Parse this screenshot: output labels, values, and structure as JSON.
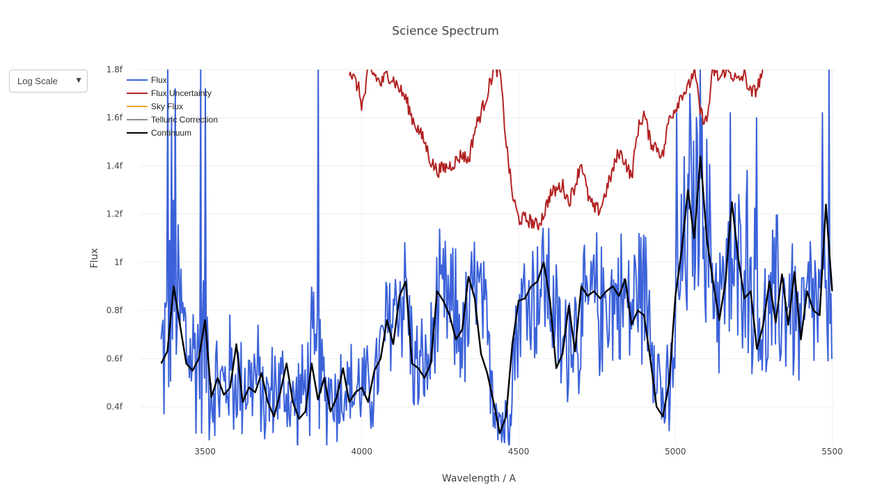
{
  "dropdown": {
    "selected": "Log Scale",
    "arrow_icon": "triangle-down-icon"
  },
  "chart_data": {
    "type": "line",
    "title": "Science Spectrum",
    "xlabel": "Wavelength / A",
    "ylabel": "Flux",
    "xlim": [
      3290,
      5510
    ],
    "ylim": [
      0.24,
      1.8
    ],
    "grid": true,
    "legend_position": "top-left",
    "x_ticks": [
      3500,
      4000,
      4500,
      5000,
      5500
    ],
    "x_tick_labels": [
      "3500",
      "4000",
      "4500",
      "5000",
      "5500"
    ],
    "y_ticks": [
      0.4,
      0.6,
      0.8,
      1.0,
      1.2,
      1.4,
      1.6,
      1.8
    ],
    "y_tick_labels": [
      "0.4f",
      "0.6f",
      "0.8f",
      "1f",
      "1.2f",
      "1.4f",
      "1.6f",
      "1.8f"
    ],
    "series": [
      {
        "name": "Flux",
        "color": "#3b62d9",
        "type": "noisy_line",
        "x": [
          3360,
          3380,
          3400,
          3420,
          3440,
          3460,
          3480,
          3500,
          3520,
          3540,
          3560,
          3580,
          3600,
          3620,
          3640,
          3660,
          3680,
          3700,
          3720,
          3740,
          3760,
          3780,
          3800,
          3820,
          3840,
          3860,
          3880,
          3900,
          3920,
          3940,
          3960,
          3980,
          4000,
          4020,
          4040,
          4060,
          4080,
          4100,
          4120,
          4140,
          4160,
          4180,
          4200,
          4220,
          4240,
          4260,
          4280,
          4300,
          4320,
          4340,
          4360,
          4380,
          4400,
          4420,
          4440,
          4460,
          4480,
          4500,
          4520,
          4540,
          4560,
          4580,
          4600,
          4620,
          4640,
          4660,
          4680,
          4700,
          4720,
          4740,
          4760,
          4780,
          4800,
          4820,
          4840,
          4860,
          4880,
          4900,
          4920,
          4940,
          4960,
          4980,
          5000,
          5020,
          5040,
          5060,
          5080,
          5100,
          5120,
          5140,
          5160,
          5180,
          5200,
          5220,
          5240,
          5260,
          5280,
          5300,
          5320,
          5340,
          5360,
          5380,
          5400,
          5420,
          5440,
          5460,
          5480,
          5500
        ],
        "center": [
          0.6,
          0.7,
          0.86,
          0.8,
          0.66,
          0.6,
          0.65,
          0.7,
          0.52,
          0.47,
          0.48,
          0.55,
          0.48,
          0.52,
          0.5,
          0.53,
          0.46,
          0.4,
          0.5,
          0.48,
          0.46,
          0.4,
          0.44,
          0.47,
          0.58,
          0.5,
          0.46,
          0.48,
          0.44,
          0.5,
          0.48,
          0.46,
          0.5,
          0.46,
          0.48,
          0.62,
          0.72,
          0.8,
          0.86,
          0.9,
          0.62,
          0.55,
          0.55,
          0.6,
          0.8,
          0.84,
          0.8,
          0.78,
          0.7,
          0.72,
          0.92,
          0.82,
          0.65,
          0.5,
          0.36,
          0.32,
          0.6,
          0.78,
          0.84,
          0.86,
          0.88,
          0.92,
          0.9,
          0.72,
          0.62,
          0.72,
          0.75,
          0.7,
          0.82,
          0.86,
          0.8,
          0.85,
          0.84,
          0.86,
          0.84,
          0.8,
          0.9,
          0.9,
          0.8,
          0.6,
          0.42,
          0.4,
          0.72,
          0.98,
          1.15,
          1.22,
          1.35,
          1.12,
          0.95,
          0.88,
          0.88,
          0.92,
          0.92,
          1.12,
          0.94,
          0.84,
          0.7,
          0.75,
          0.86,
          0.82,
          0.86,
          0.8,
          0.72,
          0.8,
          0.86,
          0.76,
          0.8,
          0.9
        ],
        "amplitude": [
          0.34,
          0.38,
          0.42,
          0.4,
          0.36,
          0.32,
          0.42,
          0.36,
          0.3,
          0.26,
          0.24,
          0.24,
          0.24,
          0.24,
          0.22,
          0.24,
          0.22,
          0.2,
          0.2,
          0.22,
          0.2,
          0.2,
          0.22,
          0.2,
          0.3,
          0.4,
          0.22,
          0.2,
          0.2,
          0.22,
          0.2,
          0.2,
          0.2,
          0.18,
          0.2,
          0.22,
          0.26,
          0.28,
          0.28,
          0.3,
          0.24,
          0.22,
          0.22,
          0.24,
          0.26,
          0.28,
          0.28,
          0.28,
          0.26,
          0.26,
          0.28,
          0.28,
          0.24,
          0.22,
          0.2,
          0.2,
          0.22,
          0.26,
          0.28,
          0.28,
          0.3,
          0.3,
          0.3,
          0.28,
          0.26,
          0.28,
          0.28,
          0.26,
          0.28,
          0.28,
          0.28,
          0.28,
          0.28,
          0.28,
          0.28,
          0.28,
          0.3,
          0.3,
          0.28,
          0.24,
          0.22,
          0.22,
          0.3,
          0.36,
          0.42,
          0.44,
          0.48,
          0.42,
          0.36,
          0.34,
          0.34,
          0.36,
          0.38,
          0.42,
          0.36,
          0.34,
          0.3,
          0.32,
          0.34,
          0.34,
          0.34,
          0.32,
          0.3,
          0.32,
          0.34,
          0.32,
          0.36,
          0.4
        ],
        "spikes": [
          [
            3380,
            1.8
          ],
          [
            3392,
            1.6
          ],
          [
            3405,
            1.72
          ],
          [
            3485,
            1.8
          ],
          [
            3500,
            1.72
          ],
          [
            3860,
            1.8
          ],
          [
            5005,
            1.62
          ],
          [
            5045,
            1.7
          ],
          [
            5085,
            1.6
          ],
          [
            5175,
            1.62
          ],
          [
            5260,
            1.6
          ],
          [
            5470,
            1.62
          ],
          [
            5490,
            1.8
          ]
        ]
      },
      {
        "name": "Flux Uncertainty",
        "color": "#b22222",
        "type": "line",
        "x": [
          3960,
          3990,
          4000,
          4010,
          4020,
          4040,
          4060,
          4080,
          4100,
          4120,
          4140,
          4160,
          4180,
          4200,
          4220,
          4240,
          4260,
          4280,
          4300,
          4320,
          4340,
          4360,
          4380,
          4400,
          4420,
          4440,
          4460,
          4480,
          4500,
          4520,
          4540,
          4560,
          4580,
          4600,
          4620,
          4640,
          4660,
          4680,
          4700,
          4720,
          4740,
          4760,
          4780,
          4800,
          4820,
          4840,
          4860,
          4880,
          4900,
          4920,
          4940,
          4960,
          4980,
          5000,
          5020,
          5040,
          5060,
          5080,
          5100,
          5120,
          5140,
          5160,
          5180,
          5200,
          5220,
          5240,
          5260,
          5280
        ],
        "y": [
          1.8,
          1.72,
          1.65,
          1.7,
          1.8,
          1.78,
          1.74,
          1.78,
          1.76,
          1.72,
          1.68,
          1.6,
          1.55,
          1.5,
          1.42,
          1.38,
          1.39,
          1.4,
          1.42,
          1.45,
          1.42,
          1.55,
          1.62,
          1.7,
          1.8,
          1.8,
          1.5,
          1.28,
          1.18,
          1.18,
          1.17,
          1.15,
          1.2,
          1.28,
          1.3,
          1.32,
          1.25,
          1.32,
          1.42,
          1.28,
          1.22,
          1.22,
          1.3,
          1.38,
          1.46,
          1.42,
          1.35,
          1.55,
          1.62,
          1.5,
          1.48,
          1.44,
          1.6,
          1.64,
          1.7,
          1.72,
          1.8,
          1.62,
          1.58,
          1.8,
          1.76,
          1.8,
          1.78,
          1.75,
          1.78,
          1.7,
          1.72,
          1.8
        ]
      },
      {
        "name": "Sky Flux",
        "color": "#f2a900",
        "type": "line",
        "x": [],
        "y": []
      },
      {
        "name": "Telluric Correction",
        "color": "#8c8c8c",
        "type": "line",
        "x": [],
        "y": []
      },
      {
        "name": "Continuum",
        "color": "#000000",
        "type": "line",
        "x": [
          3360,
          3380,
          3400,
          3420,
          3440,
          3460,
          3480,
          3500,
          3520,
          3540,
          3560,
          3580,
          3600,
          3620,
          3640,
          3660,
          3680,
          3700,
          3720,
          3740,
          3760,
          3780,
          3800,
          3820,
          3840,
          3860,
          3880,
          3900,
          3920,
          3940,
          3960,
          3980,
          4000,
          4020,
          4040,
          4060,
          4080,
          4100,
          4120,
          4140,
          4160,
          4180,
          4200,
          4220,
          4240,
          4260,
          4280,
          4300,
          4320,
          4340,
          4360,
          4380,
          4400,
          4420,
          4440,
          4460,
          4480,
          4500,
          4520,
          4540,
          4560,
          4580,
          4600,
          4620,
          4640,
          4660,
          4680,
          4700,
          4720,
          4740,
          4760,
          4780,
          4800,
          4820,
          4840,
          4860,
          4880,
          4900,
          4920,
          4940,
          4960,
          4980,
          5000,
          5020,
          5040,
          5060,
          5080,
          5100,
          5120,
          5140,
          5160,
          5180,
          5200,
          5220,
          5240,
          5260,
          5280,
          5300,
          5320,
          5340,
          5360,
          5380,
          5400,
          5420,
          5440,
          5460,
          5480,
          5500
        ],
        "y": [
          0.58,
          0.63,
          0.9,
          0.74,
          0.58,
          0.55,
          0.6,
          0.76,
          0.44,
          0.52,
          0.45,
          0.48,
          0.66,
          0.42,
          0.48,
          0.46,
          0.54,
          0.42,
          0.36,
          0.46,
          0.58,
          0.42,
          0.35,
          0.38,
          0.58,
          0.43,
          0.52,
          0.38,
          0.44,
          0.56,
          0.42,
          0.46,
          0.48,
          0.42,
          0.55,
          0.6,
          0.76,
          0.66,
          0.86,
          0.92,
          0.58,
          0.56,
          0.52,
          0.58,
          0.88,
          0.84,
          0.78,
          0.68,
          0.72,
          0.94,
          0.85,
          0.62,
          0.54,
          0.42,
          0.29,
          0.36,
          0.66,
          0.84,
          0.85,
          0.9,
          0.92,
          1.0,
          0.84,
          0.56,
          0.62,
          0.82,
          0.63,
          0.9,
          0.86,
          0.88,
          0.85,
          0.88,
          0.9,
          0.86,
          0.93,
          0.74,
          0.8,
          0.78,
          0.6,
          0.4,
          0.36,
          0.5,
          0.86,
          1.05,
          1.3,
          1.1,
          1.44,
          1.1,
          0.92,
          0.76,
          0.92,
          1.25,
          1.02,
          0.85,
          0.88,
          0.64,
          0.74,
          0.92,
          0.75,
          0.95,
          0.74,
          0.96,
          0.68,
          0.88,
          0.8,
          0.78,
          1.24,
          0.88
        ]
      }
    ]
  }
}
